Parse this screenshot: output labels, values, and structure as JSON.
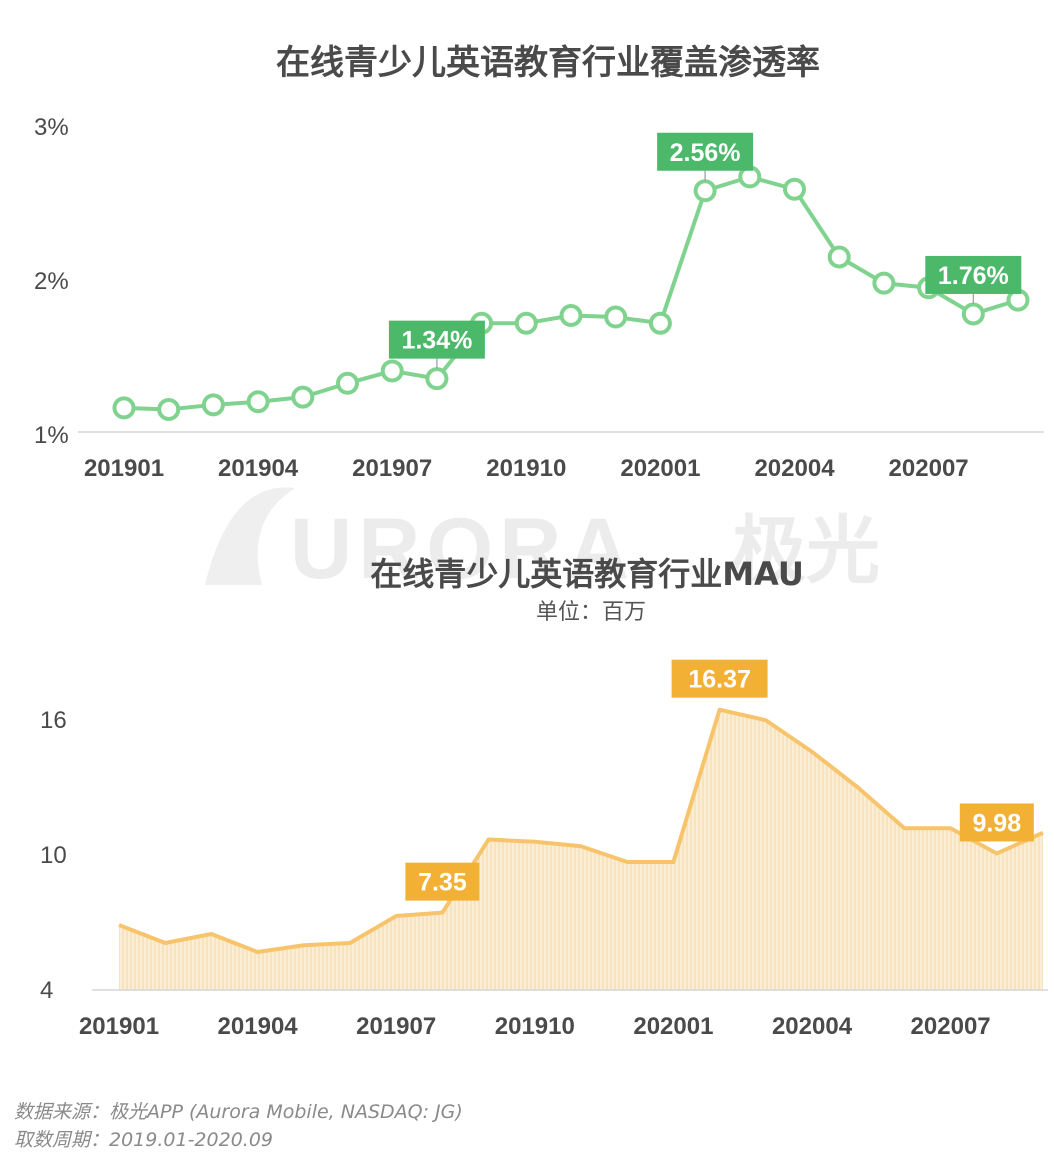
{
  "watermark": {
    "latin": "URORA",
    "cn": "极光"
  },
  "source": {
    "line1": "数据来源：极光APP (Aurora Mobile, NASDAQ: JG)",
    "line2": "取数周期：2019.01-2020.09"
  },
  "colors": {
    "green_line": "#7fd38e",
    "green_callout": "#4cb96a",
    "orange_line": "#f7c46b",
    "orange_callout": "#f2b134",
    "orange_fill": "#fbeed5",
    "axis": "#d6d6d6"
  },
  "chart_data": [
    {
      "type": "line",
      "title": "在线青少儿英语教育行业覆盖渗透率",
      "subtitle": "",
      "x": [
        "201901",
        "201902",
        "201903",
        "201904",
        "201905",
        "201906",
        "201907",
        "201908",
        "201909",
        "201910",
        "201911",
        "201912",
        "202001",
        "202002",
        "202003",
        "202004",
        "202005",
        "202006",
        "202007",
        "202008",
        "202009"
      ],
      "xtick_labels": [
        "201901",
        "201904",
        "201907",
        "201910",
        "202001",
        "202004",
        "202007"
      ],
      "ytick_labels": [
        "1%",
        "2%",
        "3%"
      ],
      "ylim": [
        1,
        3
      ],
      "unit": "%",
      "series": [
        {
          "values": [
            1.15,
            1.14,
            1.17,
            1.19,
            1.22,
            1.31,
            1.39,
            1.34,
            1.7,
            1.7,
            1.75,
            1.74,
            1.7,
            2.56,
            2.65,
            2.57,
            2.13,
            1.96,
            1.93,
            1.76,
            1.85
          ]
        }
      ],
      "callouts": [
        {
          "index": 7,
          "label": "1.34%"
        },
        {
          "index": 13,
          "label": "2.56%"
        },
        {
          "index": 19,
          "label": "1.76%"
        }
      ]
    },
    {
      "type": "area",
      "title": "在线青少儿英语教育行业MAU",
      "subtitle": "单位：百万",
      "x": [
        "201901",
        "201902",
        "201903",
        "201904",
        "201905",
        "201906",
        "201907",
        "201908",
        "201909",
        "201910",
        "201911",
        "201912",
        "202001",
        "202002",
        "202003",
        "202004",
        "202005",
        "202006",
        "202007",
        "202008",
        "202009"
      ],
      "xtick_labels": [
        "201901",
        "201904",
        "201907",
        "201910",
        "202001",
        "202004",
        "202007"
      ],
      "ytick_labels": [
        "4",
        "10",
        "16"
      ],
      "ylim": [
        4,
        16.5
      ],
      "series": [
        {
          "values": [
            6.8,
            6.0,
            6.4,
            5.6,
            5.9,
            6.0,
            7.2,
            7.35,
            10.6,
            10.5,
            10.3,
            9.6,
            9.6,
            16.37,
            15.9,
            14.5,
            12.9,
            11.1,
            11.1,
            9.98,
            10.9
          ]
        }
      ],
      "callouts": [
        {
          "index": 7,
          "label": "7.35"
        },
        {
          "index": 13,
          "label": "16.37"
        },
        {
          "index": 19,
          "label": "9.98"
        }
      ]
    }
  ]
}
